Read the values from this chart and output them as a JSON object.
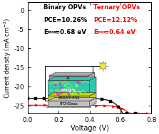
{
  "title": "",
  "xlabel": "Voltage (V)",
  "ylabel": "Current density (mA cm$^{-2}$)",
  "xlim": [
    0.0,
    0.8
  ],
  "ylim": [
    -27,
    2
  ],
  "yticks": [
    0,
    -5,
    -10,
    -15,
    -20,
    -25
  ],
  "xticks": [
    0.0,
    0.2,
    0.4,
    0.6,
    0.8
  ],
  "binary_label": "Binary OPVs",
  "binary_pce": "PCE=10.26%",
  "binary_eloss_val": "=0.68 eV",
  "ternary_label": "Ternary OPVs",
  "ternary_pce": "PCE=12.12%",
  "ternary_eloss_val": "=0.64 eV",
  "binary_color": "#000000",
  "ternary_color": "#ff0000",
  "background_color": "#ffffff",
  "binary_jsc": -23.0,
  "ternary_jsc": -24.8,
  "binary_voc": 0.695,
  "ternary_voc": 0.775,
  "binary_n_factor": 1.8,
  "ternary_n_factor": 1.9
}
